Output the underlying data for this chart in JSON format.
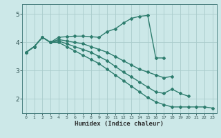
{
  "xlabel": "Humidex (Indice chaleur)",
  "ylabel": "",
  "xlim": [
    -0.5,
    23.5
  ],
  "ylim": [
    1.5,
    5.35
  ],
  "yticks": [
    2,
    3,
    4,
    5
  ],
  "xticks": [
    0,
    1,
    2,
    3,
    4,
    5,
    6,
    7,
    8,
    9,
    10,
    11,
    12,
    13,
    14,
    15,
    16,
    17,
    18,
    19,
    20,
    21,
    22,
    23
  ],
  "background_color": "#cce8e8",
  "grid_color": "#aacccc",
  "line_color": "#2e7d6e",
  "line_width": 1.0,
  "marker": "D",
  "marker_size": 2.0,
  "lines": [
    {
      "x": [
        0,
        1,
        2,
        3,
        4,
        5,
        6,
        7,
        8,
        9,
        10,
        11,
        12,
        13,
        14,
        15,
        16,
        17
      ],
      "y": [
        3.65,
        3.85,
        4.18,
        4.0,
        4.18,
        4.2,
        4.22,
        4.22,
        4.2,
        4.18,
        4.38,
        4.48,
        4.68,
        4.85,
        4.92,
        4.95,
        3.45,
        3.45
      ]
    },
    {
      "x": [
        0,
        1,
        2,
        3,
        4,
        5,
        6,
        7,
        8,
        9,
        10,
        11,
        12,
        13,
        14,
        15,
        16,
        17,
        18
      ],
      "y": [
        3.65,
        3.85,
        4.18,
        4.0,
        4.1,
        4.05,
        4.0,
        3.95,
        3.85,
        3.75,
        3.65,
        3.5,
        3.35,
        3.2,
        3.05,
        2.95,
        2.85,
        2.75,
        2.8
      ]
    },
    {
      "x": [
        0,
        1,
        2,
        3,
        4,
        5,
        6,
        7,
        8,
        9,
        10,
        11,
        12,
        13,
        14,
        15,
        16,
        17,
        18,
        19,
        20
      ],
      "y": [
        3.65,
        3.85,
        4.18,
        4.0,
        4.05,
        3.95,
        3.85,
        3.75,
        3.65,
        3.5,
        3.35,
        3.15,
        2.95,
        2.78,
        2.6,
        2.42,
        2.25,
        2.2,
        2.35,
        2.2,
        2.1
      ]
    },
    {
      "x": [
        0,
        1,
        2,
        3,
        4,
        5,
        6,
        7,
        8,
        9,
        10,
        11,
        12,
        13,
        14,
        15,
        16,
        17,
        18,
        19,
        20,
        21,
        22,
        23
      ],
      "y": [
        3.65,
        3.85,
        4.18,
        4.0,
        4.0,
        3.85,
        3.7,
        3.55,
        3.4,
        3.25,
        3.05,
        2.85,
        2.65,
        2.45,
        2.25,
        2.05,
        1.9,
        1.8,
        1.72,
        1.72,
        1.72,
        1.72,
        1.72,
        1.68
      ]
    }
  ]
}
